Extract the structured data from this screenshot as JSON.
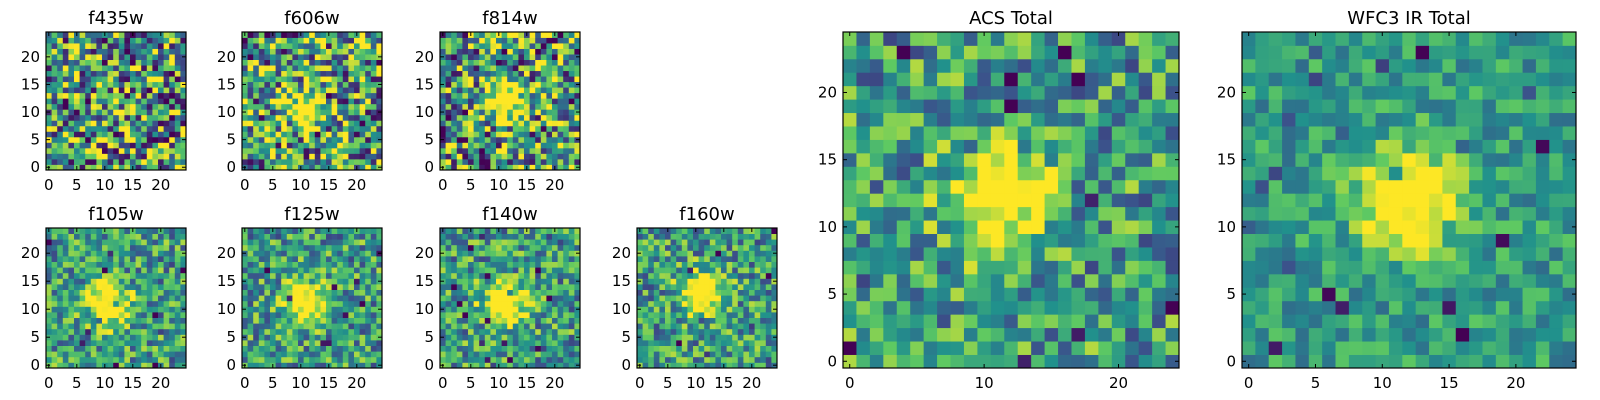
{
  "chart_data": [
    {
      "type": "heatmap",
      "title": "f435w",
      "peak_xy": null,
      "noise": "high",
      "xlim": [
        -0.5,
        24.5
      ],
      "ylim": [
        -0.5,
        24.5
      ],
      "xticks": [
        0,
        5,
        10,
        15,
        20
      ],
      "yticks": [
        0,
        5,
        10,
        15,
        20
      ]
    },
    {
      "type": "heatmap",
      "title": "f606w",
      "peak_xy": [
        11,
        11
      ],
      "noise": "high",
      "xlim": [
        -0.5,
        24.5
      ],
      "ylim": [
        -0.5,
        24.5
      ],
      "xticks": [
        0,
        5,
        10,
        15,
        20
      ],
      "yticks": [
        0,
        5,
        10,
        15,
        20
      ]
    },
    {
      "type": "heatmap",
      "title": "f814w",
      "peak_xy": [
        11,
        12
      ],
      "noise": "high",
      "xlim": [
        -0.5,
        24.5
      ],
      "ylim": [
        -0.5,
        24.5
      ],
      "xticks": [
        0,
        5,
        10,
        15,
        20
      ],
      "yticks": [
        0,
        5,
        10,
        15,
        20
      ]
    },
    {
      "type": "heatmap",
      "title": "f105w",
      "peak_xy": [
        11,
        11
      ],
      "noise": "medium",
      "xlim": [
        -0.5,
        24.5
      ],
      "ylim": [
        -0.5,
        24.5
      ],
      "xticks": [
        0,
        5,
        10,
        15,
        20
      ],
      "yticks": [
        0,
        5,
        10,
        15,
        20
      ]
    },
    {
      "type": "heatmap",
      "title": "f125w",
      "peak_xy": [
        11,
        11
      ],
      "noise": "medium",
      "xlim": [
        -0.5,
        24.5
      ],
      "ylim": [
        -0.5,
        24.5
      ],
      "xticks": [
        0,
        5,
        10,
        15,
        20
      ],
      "yticks": [
        0,
        5,
        10,
        15,
        20
      ]
    },
    {
      "type": "heatmap",
      "title": "f140w",
      "peak_xy": [
        11,
        11
      ],
      "noise": "medium",
      "xlim": [
        -0.5,
        24.5
      ],
      "ylim": [
        -0.5,
        24.5
      ],
      "xticks": [
        0,
        5,
        10,
        15,
        20
      ],
      "yticks": [
        0,
        5,
        10,
        15,
        20
      ]
    },
    {
      "type": "heatmap",
      "title": "f160w",
      "peak_xy": [
        11,
        13
      ],
      "noise": "medium",
      "xlim": [
        -0.5,
        24.5
      ],
      "ylim": [
        -0.5,
        24.5
      ],
      "xticks": [
        0,
        5,
        10,
        15,
        20
      ],
      "yticks": [
        0,
        5,
        10,
        15,
        20
      ]
    },
    {
      "type": "heatmap",
      "title": "ACS Total",
      "peak_xy": [
        11,
        12
      ],
      "noise": "medium",
      "xlim": [
        -0.5,
        24.5
      ],
      "ylim": [
        -0.5,
        24.5
      ],
      "xticks": [
        0,
        10,
        20
      ],
      "yticks": [
        0,
        5,
        10,
        15,
        20
      ]
    },
    {
      "type": "heatmap",
      "title": "WFC3 IR Total",
      "peak_xy": [
        12,
        12
      ],
      "noise": "low",
      "xlim": [
        -0.5,
        24.5
      ],
      "ylim": [
        -0.5,
        24.5
      ],
      "xticks": [
        0,
        5,
        10,
        15,
        20
      ],
      "yticks": [
        0,
        5,
        10,
        15,
        20
      ]
    }
  ],
  "colormap": [
    "#440154",
    "#3b528b",
    "#21918c",
    "#5ec962",
    "#fde725"
  ]
}
